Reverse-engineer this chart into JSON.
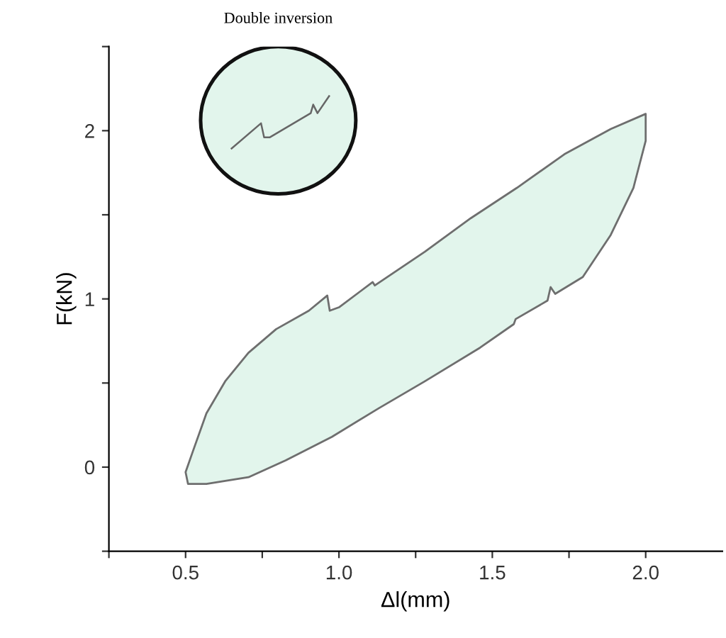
{
  "chart_data": {
    "type": "area",
    "xlabel": "Δl(mm)",
    "ylabel": "F(kN)",
    "annotations": [
      "Double inversion"
    ],
    "xlim": [
      0.25,
      2.25
    ],
    "ylim": [
      -0.5,
      2.5
    ],
    "xticks": [
      {
        "value": 0.25,
        "label": null
      },
      0.5,
      {
        "value": 0.75,
        "label": null
      },
      {
        "value": 1,
        "label": "1.0"
      },
      {
        "value": 1.25,
        "label": null
      },
      1.5,
      {
        "value": 1.75,
        "label": null
      },
      {
        "value": 2,
        "label": "2.0"
      }
    ],
    "yticks": [
      {
        "value": -0.5,
        "label": null
      },
      0,
      {
        "value": 0.5,
        "label": null
      },
      1,
      {
        "value": 1.5,
        "label": null
      },
      2,
      {
        "value": 2.5,
        "label": null
      }
    ],
    "grid": false,
    "legend": false,
    "series": [
      {
        "color": "#e2f5ec",
        "x": [
          0.508,
          0.5,
          0.523,
          0.568,
          0.629,
          0.705,
          0.795,
          0.902,
          0.962,
          0.97,
          1.0,
          1.11,
          1.117,
          1.28,
          1.43,
          1.58,
          1.735,
          1.886,
          2.0,
          2.0,
          1.96,
          1.886,
          1.795,
          1.705,
          1.69,
          1.68,
          1.576,
          1.57,
          1.46,
          1.28,
          1.13,
          0.977,
          0.826,
          0.705,
          0.568,
          0.508
        ],
        "values": [
          -0.1,
          -0.03,
          0.09,
          0.32,
          0.51,
          0.68,
          0.82,
          0.93,
          1.02,
          0.93,
          0.95,
          1.1,
          1.08,
          1.28,
          1.48,
          1.66,
          1.86,
          2.01,
          2.1,
          1.94,
          1.66,
          1.38,
          1.13,
          1.03,
          1.07,
          0.99,
          0.88,
          0.85,
          0.71,
          0.51,
          0.35,
          0.18,
          0.04,
          -0.06,
          -0.1,
          -0.1
        ]
      }
    ]
  }
}
